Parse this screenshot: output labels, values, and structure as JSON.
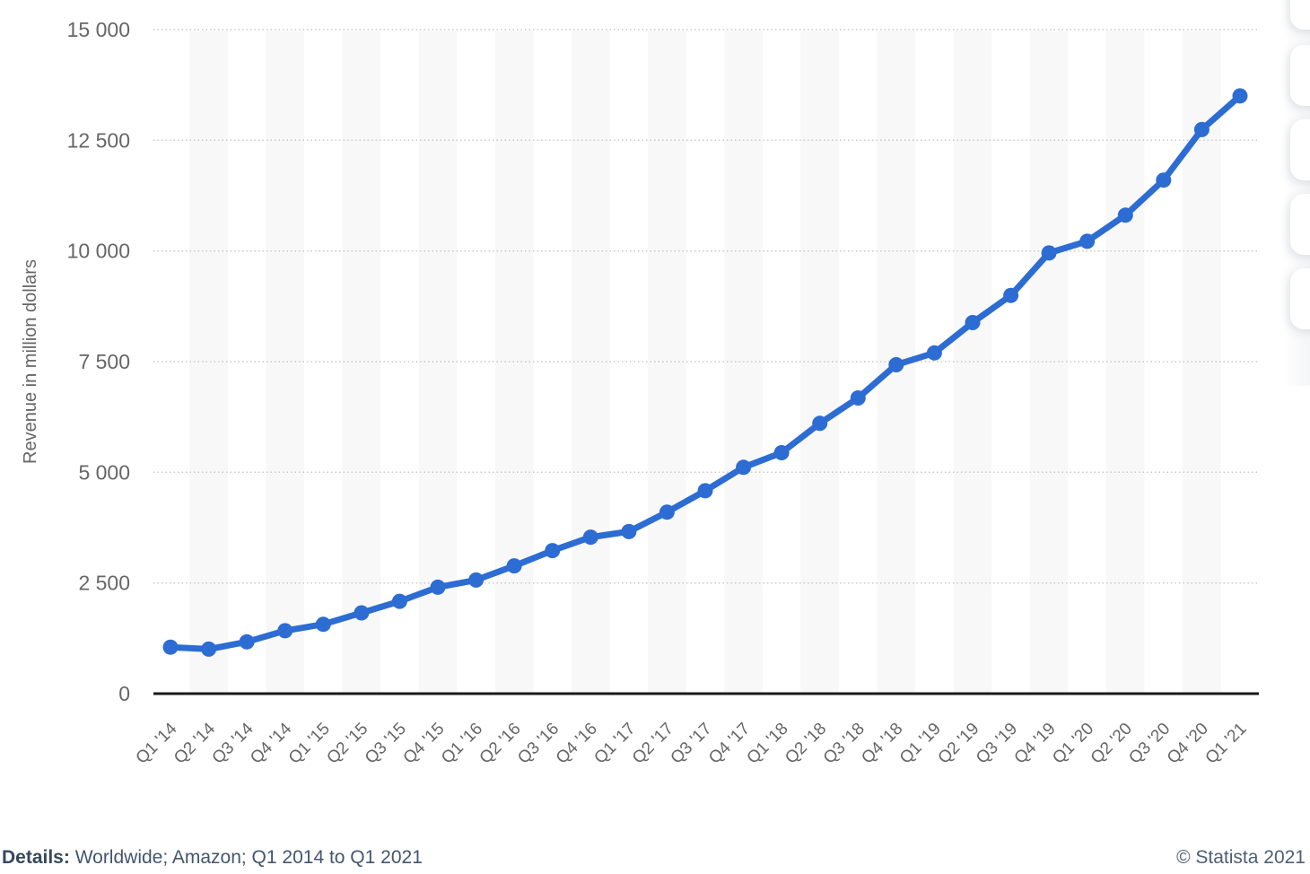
{
  "chart_data": {
    "type": "line",
    "categories": [
      "Q1 '14",
      "Q2 '14",
      "Q3 '14",
      "Q4 '14",
      "Q1 '15",
      "Q2 '15",
      "Q3 '15",
      "Q4 '15",
      "Q1 '16",
      "Q2 '16",
      "Q3 '16",
      "Q4 '16",
      "Q1 '17",
      "Q2 '17",
      "Q3 '17",
      "Q4 '17",
      "Q1 '18",
      "Q2 '18",
      "Q3 '18",
      "Q4 '18",
      "Q1 '19",
      "Q2 '19",
      "Q3 '19",
      "Q4 '19",
      "Q1 '20",
      "Q2 '20",
      "Q3 '20",
      "Q4 '20",
      "Q1 '21"
    ],
    "values": [
      1050,
      1005,
      1169,
      1420,
      1566,
      1824,
      2085,
      2405,
      2566,
      2886,
      3231,
      3536,
      3661,
      4100,
      4584,
      5113,
      5442,
      6105,
      6679,
      7430,
      7696,
      8381,
      8995,
      9954,
      10219,
      10808,
      11601,
      12742,
      13503
    ],
    "title": "",
    "xlabel": "",
    "ylabel": "Revenue in million dollars",
    "ylim": [
      0,
      15000
    ],
    "ytick_interval": 2500,
    "ytick_labels": [
      "0",
      "2 500",
      "5 000",
      "7 500",
      "10 000",
      "12 500",
      "15 000"
    ],
    "grid": "horizontal-dotted",
    "legend": "none",
    "colors": {
      "line": "#2c6cd3",
      "marker": "#2c6cd3",
      "grid_dots": "#c9c9c9",
      "axis": "#1a1a1a",
      "tick_text": "#666666",
      "band": "#f8f8f9"
    }
  },
  "side_toolbar": {
    "visible_buttons": 5
  },
  "footer": {
    "details_label": "Details:",
    "details_value": " Worldwide; Amazon; Q1 2014 to Q1 2021",
    "copyright": "© Statista 2021"
  }
}
